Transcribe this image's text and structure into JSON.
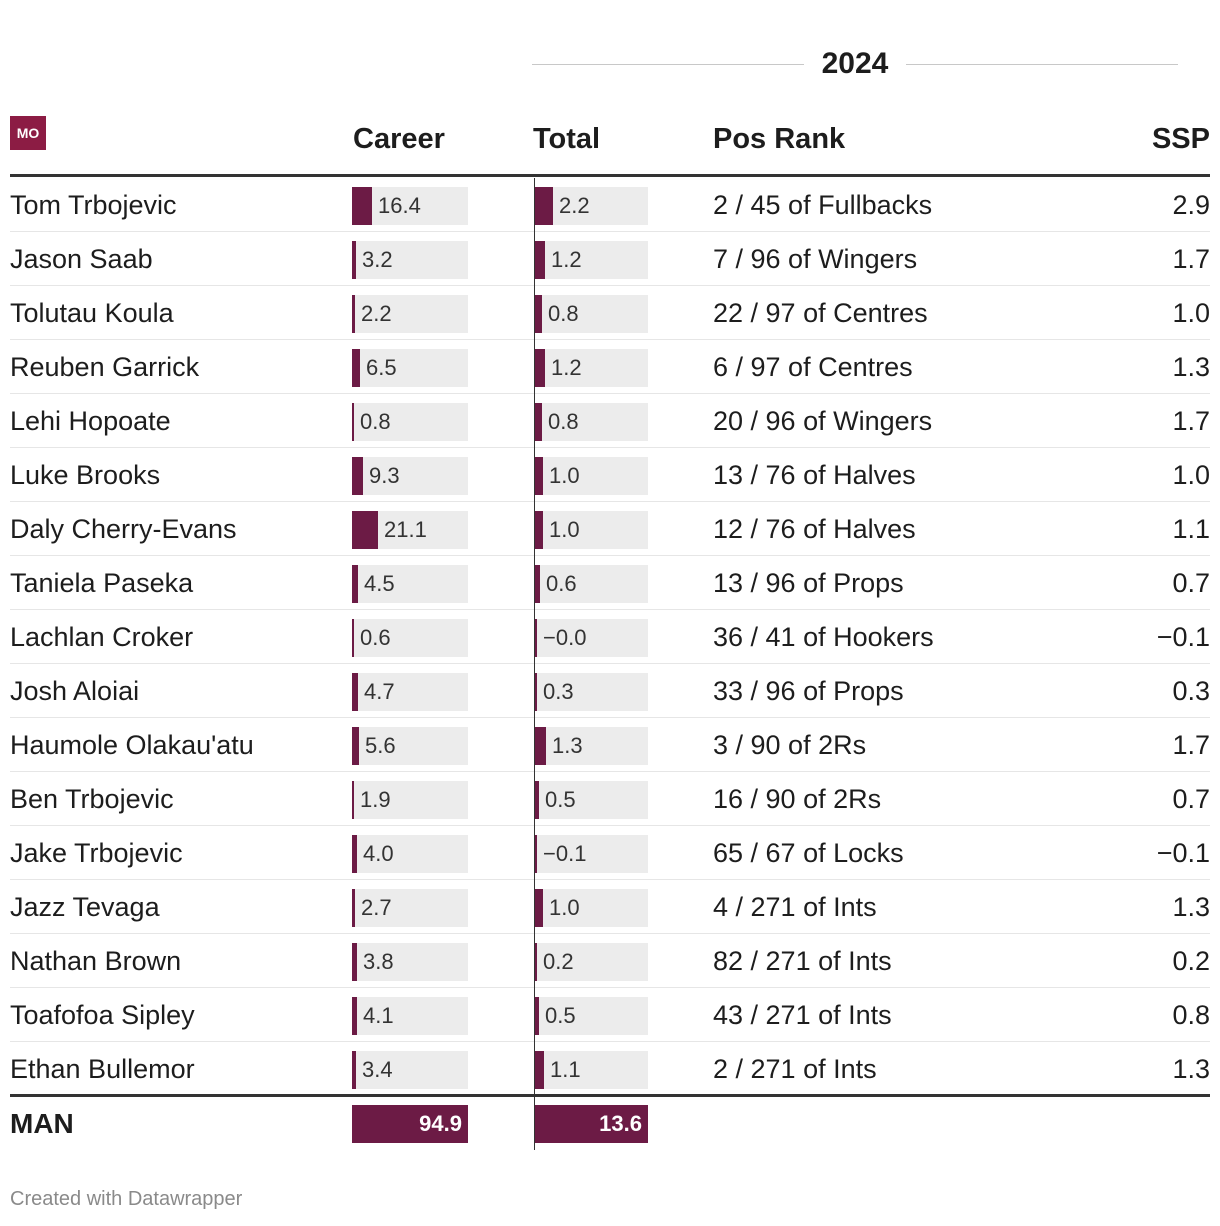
{
  "header": {
    "group_title": "2024",
    "logo_text": "MO",
    "columns": {
      "name": "",
      "career": "Career",
      "total": "Total",
      "pos_rank": "Pos Rank",
      "ssp": "SSP"
    }
  },
  "colors": {
    "bar": "#6c1b45",
    "track": "#ececec",
    "logo": "#8c1c44"
  },
  "chart_data": {
    "type": "table",
    "career_scale": [
      0,
      94.9
    ],
    "total_scale": [
      0,
      13.6
    ],
    "rows": [
      {
        "name": "Tom Trbojevic",
        "career": 16.4,
        "career_label": "16.4",
        "total": 2.2,
        "total_label": "2.2",
        "pos_rank": "2 / 45 of Fullbacks",
        "ssp": "2.9"
      },
      {
        "name": "Jason Saab",
        "career": 3.2,
        "career_label": "3.2",
        "total": 1.2,
        "total_label": "1.2",
        "pos_rank": "7 / 96 of Wingers",
        "ssp": "1.7"
      },
      {
        "name": "Tolutau Koula",
        "career": 2.2,
        "career_label": "2.2",
        "total": 0.8,
        "total_label": "0.8",
        "pos_rank": "22 / 97 of Centres",
        "ssp": "1.0"
      },
      {
        "name": "Reuben Garrick",
        "career": 6.5,
        "career_label": "6.5",
        "total": 1.2,
        "total_label": "1.2",
        "pos_rank": "6 / 97 of Centres",
        "ssp": "1.3"
      },
      {
        "name": "Lehi Hopoate",
        "career": 0.8,
        "career_label": "0.8",
        "total": 0.8,
        "total_label": "0.8",
        "pos_rank": "20 / 96 of Wingers",
        "ssp": "1.7"
      },
      {
        "name": "Luke Brooks",
        "career": 9.3,
        "career_label": "9.3",
        "total": 1.0,
        "total_label": "1.0",
        "pos_rank": "13 / 76 of Halves",
        "ssp": "1.0"
      },
      {
        "name": "Daly Cherry-Evans",
        "career": 21.1,
        "career_label": "21.1",
        "total": 1.0,
        "total_label": "1.0",
        "pos_rank": "12 / 76 of Halves",
        "ssp": "1.1"
      },
      {
        "name": "Taniela Paseka",
        "career": 4.5,
        "career_label": "4.5",
        "total": 0.6,
        "total_label": "0.6",
        "pos_rank": "13 / 96 of Props",
        "ssp": "0.7"
      },
      {
        "name": "Lachlan Croker",
        "career": 0.6,
        "career_label": "0.6",
        "total": -0.0,
        "total_label": "−0.0",
        "pos_rank": "36 / 41 of Hookers",
        "ssp": "−0.1"
      },
      {
        "name": "Josh Aloiai",
        "career": 4.7,
        "career_label": "4.7",
        "total": 0.3,
        "total_label": "0.3",
        "pos_rank": "33 / 96 of Props",
        "ssp": "0.3"
      },
      {
        "name": "Haumole Olakau'atu",
        "career": 5.6,
        "career_label": "5.6",
        "total": 1.3,
        "total_label": "1.3",
        "pos_rank": "3 / 90 of 2Rs",
        "ssp": "1.7"
      },
      {
        "name": "Ben Trbojevic",
        "career": 1.9,
        "career_label": "1.9",
        "total": 0.5,
        "total_label": "0.5",
        "pos_rank": "16 / 90 of 2Rs",
        "ssp": "0.7"
      },
      {
        "name": "Jake Trbojevic",
        "career": 4.0,
        "career_label": "4.0",
        "total": -0.1,
        "total_label": "−0.1",
        "pos_rank": "65 / 67 of Locks",
        "ssp": "−0.1"
      },
      {
        "name": "Jazz Tevaga",
        "career": 2.7,
        "career_label": "2.7",
        "total": 1.0,
        "total_label": "1.0",
        "pos_rank": "4 / 271 of Ints",
        "ssp": "1.3"
      },
      {
        "name": "Nathan Brown",
        "career": 3.8,
        "career_label": "3.8",
        "total": 0.2,
        "total_label": "0.2",
        "pos_rank": "82 / 271 of Ints",
        "ssp": "0.2"
      },
      {
        "name": "Toafofoa Sipley",
        "career": 4.1,
        "career_label": "4.1",
        "total": 0.5,
        "total_label": "0.5",
        "pos_rank": "43 / 271 of Ints",
        "ssp": "0.8"
      },
      {
        "name": "Ethan Bullemor",
        "career": 3.4,
        "career_label": "3.4",
        "total": 1.1,
        "total_label": "1.1",
        "pos_rank": "2 / 271 of Ints",
        "ssp": "1.3"
      }
    ],
    "total_row": {
      "name": "MAN",
      "career": 94.9,
      "career_label": "94.9",
      "total": 13.6,
      "total_label": "13.6"
    }
  },
  "footer": {
    "credit": "Created with Datawrapper"
  }
}
